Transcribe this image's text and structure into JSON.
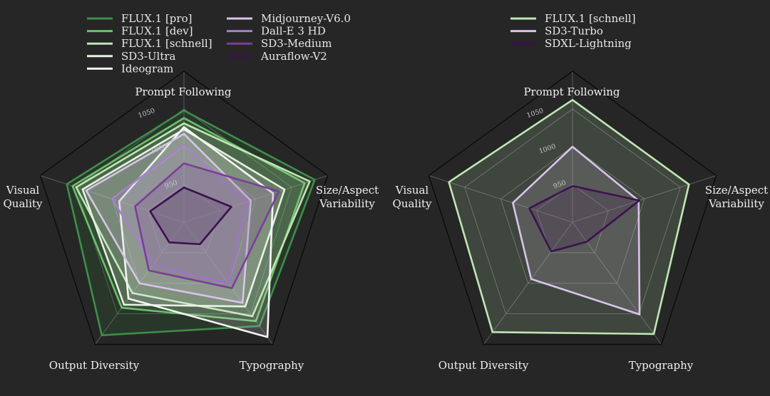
{
  "colors": {
    "background": "#262626",
    "grid": "#6a6a6a",
    "frame": "#0b0b0b",
    "flux_pro": "#3e8e4a",
    "flux_dev": "#6dc06a",
    "flux_schnell": "#bfe6b4",
    "sd3_ultra": "#e6f2e2",
    "ideogram": "#f6f6f6",
    "midjourney": "#d9c3ea",
    "dalle3": "#a780cc",
    "sd3_medium": "#7c3d9b",
    "auraflow": "#3c1150"
  },
  "chart_data": [
    {
      "type": "radar",
      "axes": [
        "Prompt Following",
        "Size/Aspect Variability",
        "Typography",
        "Output Diversity",
        "Visual Quality"
      ],
      "axes_display": [
        [
          "Prompt Following"
        ],
        [
          "Size/Aspect",
          "Variability"
        ],
        [
          "Typography"
        ],
        [
          "Output Diversity"
        ],
        [
          "Visual",
          "Quality"
        ]
      ],
      "r_range": [
        900,
        1100
      ],
      "ticks": [
        950,
        1000,
        1050
      ],
      "legend_position": "top",
      "series": [
        {
          "name": "FLUX.1 [pro]",
          "color_key": "flux_pro",
          "values": [
            1048,
            1082,
            1070,
            1085,
            1063
          ]
        },
        {
          "name": "FLUX.1 [dev]",
          "color_key": "flux_dev",
          "values": [
            1038,
            1068,
            1062,
            1040,
            1055
          ]
        },
        {
          "name": "FLUX.1 [schnell]",
          "color_key": "flux_schnell",
          "values": [
            1031,
            1075,
            1054,
            1016,
            1050
          ]
        },
        {
          "name": "SD3-Ultra",
          "color_key": "sd3_ultra",
          "values": [
            1023,
            1040,
            1038,
            1035,
            1041
          ]
        },
        {
          "name": "Ideogram",
          "color_key": "ideogram",
          "values": [
            1026,
            1024,
            1088,
            1025,
            990
          ]
        },
        {
          "name": "Midjourney-V6.0",
          "color_key": "midjourney",
          "values": [
            1017,
            993,
            1032,
            1000,
            1036
          ]
        },
        {
          "name": "Dall-E 3 HD",
          "color_key": "dalle3",
          "values": [
            1003,
            987,
            1000,
            970,
            1000
          ]
        },
        {
          "name": "SD3-Medium",
          "color_key": "sd3_medium",
          "values": [
            978,
            1032,
            1008,
            979,
            968
          ]
        },
        {
          "name": "Auraflow-V2",
          "color_key": "auraflow",
          "values": [
            946,
            966,
            936,
            933,
            947
          ]
        }
      ]
    },
    {
      "type": "radar",
      "axes": [
        "Prompt Following",
        "Size/Aspect Variability",
        "Typography",
        "Output Diversity",
        "Visual Quality"
      ],
      "axes_display": [
        [
          "Prompt Following"
        ],
        [
          "Size/Aspect",
          "Variability"
        ],
        [
          "Typography"
        ],
        [
          "Output Diversity"
        ],
        [
          "Visual",
          "Quality"
        ]
      ],
      "r_range": [
        900,
        1100
      ],
      "ticks": [
        950,
        1000,
        1050
      ],
      "legend_position": "top",
      "series": [
        {
          "name": "FLUX.1 [schnell]",
          "color_key": "flux_schnell",
          "values": [
            1062,
            1062,
            1083,
            1080,
            1072
          ]
        },
        {
          "name": "SD3-Turbo",
          "color_key": "midjourney",
          "values": [
            1000,
            992,
            1051,
            993,
            983
          ]
        },
        {
          "name": "SDXL-Lightning",
          "color_key": "auraflow",
          "values": [
            948,
            993,
            932,
            948,
            960
          ]
        }
      ]
    }
  ]
}
